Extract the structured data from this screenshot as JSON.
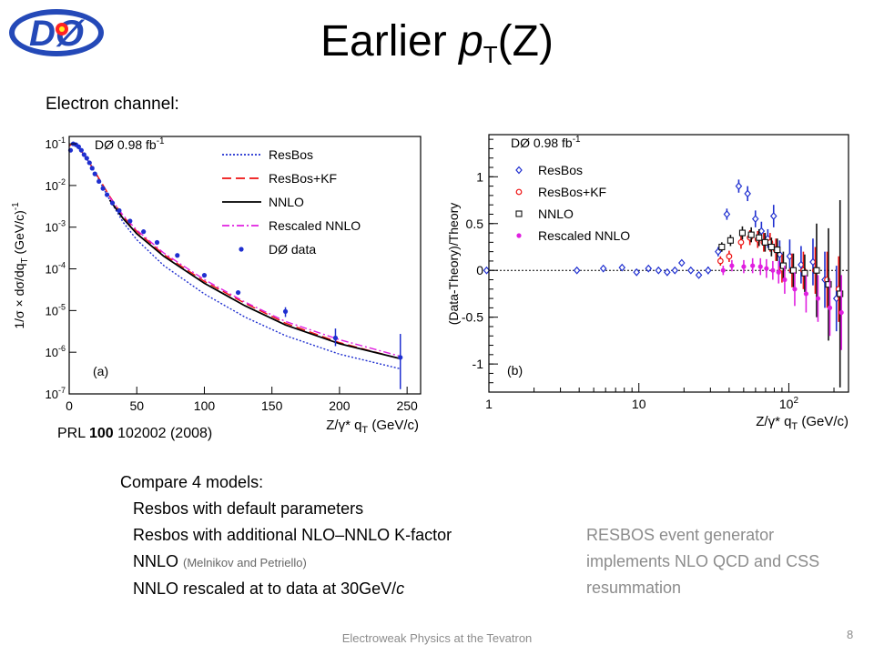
{
  "slide": {
    "title_main": "Earlier ",
    "title_italic": "p",
    "title_sub": "T",
    "title_tail": "(Z)",
    "electron_channel": "Electron channel:",
    "reference": {
      "prefix": "PRL ",
      "volume": "100",
      "suffix": " 102002 (2008)"
    },
    "compare": {
      "heading": "Compare 4 models:",
      "item1": "Resbos with default parameters",
      "item2": "Resbos with additional NLO–NNLO K-factor",
      "item3": "NNLO ",
      "item3_small": "(Melnikov and Petriello)",
      "item4_prefix": "NNLO rescaled at to data at 30GeV/",
      "item4_italic": "c"
    },
    "resbos_note": "RESBOS event generator implements NLO QCD and CSS resummation",
    "footer": "Electroweak Physics at the Tevatron",
    "page_number": "8",
    "logo_text": "DØ"
  },
  "chart_data": [
    {
      "type": "line",
      "panel_label": "(a)",
      "xlabel": "Z/γ* q_T (GeV/c)",
      "ylabel": "1/σ × dσ/dq_T (GeV/c)^-1",
      "xlim": [
        0,
        260
      ],
      "ylim": [
        1e-07,
        0.15
      ],
      "y_scale": "log",
      "x_ticks": [
        0,
        50,
        100,
        150,
        200,
        250
      ],
      "y_ticks": [
        "10^-1",
        "10^-2",
        "10^-3",
        "10^-4",
        "10^-5",
        "10^-6",
        "10^-7"
      ],
      "legend": {
        "title": "DØ 0.98 fb^-1",
        "placement": "top-right",
        "entries": [
          "ResBos",
          "ResBos+KF",
          "NNLO",
          "Rescaled NNLO",
          "DØ data"
        ]
      },
      "series": [
        {
          "name": "ResBos",
          "color": "#1f2fd0",
          "style": "dotted",
          "x": [
            0,
            3,
            6,
            10,
            15,
            20,
            30,
            40,
            50,
            70,
            100,
            130,
            160,
            200,
            245
          ],
          "y": [
            0.09,
            0.1,
            0.085,
            0.06,
            0.035,
            0.018,
            0.0045,
            0.0013,
            0.0005,
            0.00012,
            2.5e-05,
            7e-06,
            2.5e-06,
            9e-07,
            4e-07
          ]
        },
        {
          "name": "ResBos+KF",
          "color": "#ee1111",
          "style": "dashed",
          "x": [
            0,
            3,
            6,
            10,
            15,
            20,
            30,
            40,
            50,
            70,
            100,
            130,
            160,
            200,
            245
          ],
          "y": [
            0.09,
            0.1,
            0.085,
            0.06,
            0.035,
            0.019,
            0.0055,
            0.0018,
            0.0008,
            0.00022,
            5e-05,
            1.5e-05,
            5e-06,
            1.7e-06,
            7e-07
          ]
        },
        {
          "name": "NNLO",
          "color": "#000000",
          "style": "solid",
          "x": [
            30,
            40,
            50,
            70,
            100,
            130,
            160,
            200,
            245
          ],
          "y": [
            0.0045,
            0.0016,
            0.0007,
            0.0002,
            4.5e-05,
            1.3e-05,
            4.5e-06,
            1.6e-06,
            7e-07
          ]
        },
        {
          "name": "Rescaled NNLO",
          "color": "#e020e0",
          "style": "dashdot",
          "x": [
            30,
            40,
            50,
            70,
            100,
            130,
            160,
            200,
            245
          ],
          "y": [
            0.0052,
            0.0019,
            0.00085,
            0.00024,
            5.5e-05,
            1.6e-05,
            5.5e-06,
            2e-06,
            8e-07
          ]
        },
        {
          "name": "DØ data",
          "color": "#1f2fd0",
          "style": "points",
          "x": [
            1,
            3,
            5,
            7,
            9,
            11,
            13,
            15,
            17,
            19,
            22,
            25,
            28,
            32,
            37,
            45,
            55,
            65,
            80,
            100,
            125,
            160,
            197,
            245
          ],
          "y": [
            0.07,
            0.1,
            0.095,
            0.085,
            0.07,
            0.055,
            0.045,
            0.035,
            0.026,
            0.019,
            0.0125,
            0.0085,
            0.006,
            0.0038,
            0.0025,
            0.0014,
            0.00078,
            0.00043,
            0.00021,
            7e-05,
            2.7e-05,
            9.5e-06,
            2.2e-06,
            7.5e-07
          ],
          "y_err_hi": [
            0,
            0,
            0,
            0,
            0,
            0,
            0,
            0,
            0,
            0,
            0,
            0,
            0,
            0,
            0,
            0,
            0,
            0,
            0,
            0,
            0,
            2.5e-06,
            1.5e-06,
            2e-06
          ],
          "y_err_lo": [
            0,
            0,
            0,
            0,
            0,
            0,
            0,
            0,
            0,
            0,
            0,
            0,
            0,
            0,
            0,
            0,
            0,
            0,
            0,
            0,
            0,
            2.5e-06,
            8e-07,
            6.2e-07
          ]
        }
      ]
    },
    {
      "type": "scatter",
      "panel_label": "(b)",
      "xlabel": "Z/γ* q_T (GeV/c)",
      "ylabel": "(Data-Theory)/Theory",
      "xlim": [
        1,
        250
      ],
      "x_scale": "log",
      "ylim": [
        -1.3,
        1.45
      ],
      "x_ticks": [
        "1",
        "10",
        "10^2"
      ],
      "y_ticks": [
        "1",
        "0.5",
        "0",
        "-0.5",
        "-1"
      ],
      "legend": {
        "title": "DØ 0.98 fb^-1",
        "placement": "top-left",
        "entries": [
          "ResBos",
          "ResBos+KF",
          "NNLO",
          "Rescaled NNLO"
        ]
      },
      "x": [
        1,
        4,
        6,
        8,
        10,
        12,
        14,
        16,
        18,
        20,
        23,
        26,
        30,
        35,
        40,
        48,
        55,
        62,
        68,
        75,
        82,
        90,
        105,
        125,
        150,
        180,
        215
      ],
      "series": [
        {
          "name": "ResBos",
          "color": "#1f2fd0",
          "marker": "diamond-open",
          "y": [
            0,
            0,
            0.02,
            0.03,
            -0.02,
            0.02,
            0,
            -0.02,
            0,
            0.08,
            0,
            -0.05,
            0,
            0.2,
            0.6,
            0.9,
            0.82,
            0.55,
            0.42,
            0.34,
            0.58,
            0.17,
            0.15,
            0.06,
            0.09,
            -0.1,
            -0.3
          ],
          "y_err": [
            0.02,
            0.02,
            0.02,
            0.02,
            0.02,
            0.02,
            0.02,
            0.02,
            0.02,
            0.03,
            0.03,
            0.03,
            0.04,
            0.05,
            0.06,
            0.07,
            0.08,
            0.09,
            0.1,
            0.1,
            0.12,
            0.15,
            0.18,
            0.2,
            0.25,
            0.3,
            0.35
          ]
        },
        {
          "name": "ResBos+KF",
          "color": "#ee1111",
          "marker": "circle-open",
          "y": [
            null,
            null,
            null,
            null,
            null,
            null,
            null,
            null,
            null,
            null,
            null,
            null,
            null,
            0.1,
            0.15,
            0.3,
            0.35,
            0.33,
            0.3,
            0.3,
            0.22,
            0.02,
            0,
            0,
            0,
            -0.1,
            -0.2
          ],
          "y_err": [
            null,
            null,
            null,
            null,
            null,
            null,
            null,
            null,
            null,
            null,
            null,
            null,
            null,
            0.05,
            0.06,
            0.07,
            0.08,
            0.09,
            0.1,
            0.1,
            0.12,
            0.15,
            0.18,
            0.2,
            0.25,
            0.3,
            0.35
          ]
        },
        {
          "name": "NNLO",
          "color": "#111111",
          "marker": "square-open",
          "y": [
            null,
            null,
            null,
            null,
            null,
            null,
            null,
            null,
            null,
            null,
            null,
            null,
            null,
            0.25,
            0.32,
            0.4,
            0.38,
            0.35,
            0.3,
            0.25,
            0.22,
            0.05,
            0,
            -0.03,
            0,
            -0.15,
            -0.25
          ],
          "y_err": [
            null,
            null,
            null,
            null,
            null,
            null,
            null,
            null,
            null,
            null,
            null,
            null,
            null,
            0.05,
            0.06,
            0.07,
            0.08,
            0.09,
            0.1,
            0.1,
            0.12,
            0.15,
            0.18,
            0.2,
            0.5,
            0.6,
            1.0
          ]
        },
        {
          "name": "Rescaled NNLO",
          "color": "#e020e0",
          "marker": "circle-filled",
          "y": [
            null,
            null,
            null,
            null,
            null,
            null,
            null,
            null,
            null,
            null,
            null,
            null,
            null,
            0,
            0.05,
            0.04,
            0.05,
            0.04,
            0.02,
            0,
            -0.02,
            -0.1,
            -0.2,
            -0.25,
            -0.3,
            -0.4,
            -0.45
          ],
          "y_err": [
            null,
            null,
            null,
            null,
            null,
            null,
            null,
            null,
            null,
            null,
            null,
            null,
            null,
            0.05,
            0.06,
            0.07,
            0.08,
            0.09,
            0.1,
            0.1,
            0.12,
            0.15,
            0.18,
            0.2,
            0.25,
            0.3,
            0.4
          ]
        }
      ]
    }
  ]
}
